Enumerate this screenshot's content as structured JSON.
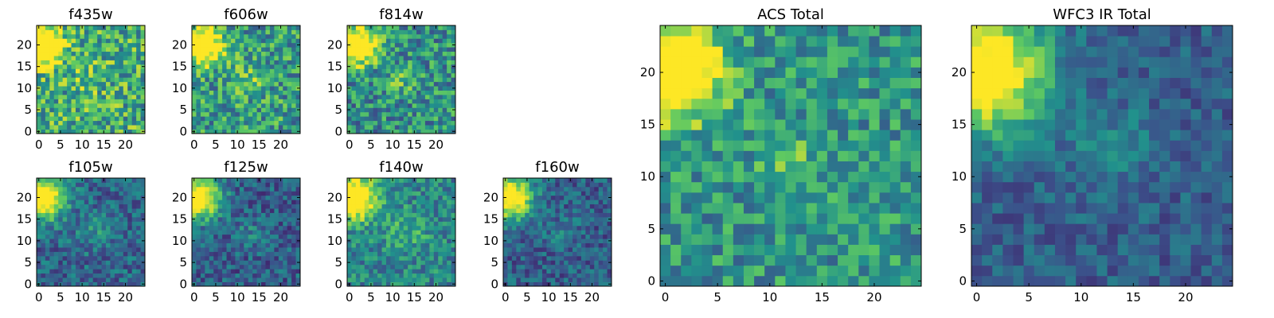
{
  "figure": {
    "colormap": "viridis",
    "colormap_stops": [
      "#440154",
      "#3b528b",
      "#21918c",
      "#5ec962",
      "#fde725"
    ]
  },
  "chart_data": [
    {
      "type": "heatmap",
      "title": "f435w",
      "grid_size": [
        25,
        25
      ],
      "xlim": [
        -0.5,
        24.5
      ],
      "ylim": [
        -0.5,
        24.5
      ],
      "xticks": [
        0,
        5,
        10,
        15,
        20
      ],
      "yticks": [
        0,
        5,
        10,
        15,
        20
      ],
      "bright_spot": [
        1,
        20
      ],
      "bright_spot_radius": 3,
      "mean_level": 0.62,
      "noise": 0.3,
      "features": [
        {
          "x": 12,
          "y": 12,
          "sigma": 2.5,
          "amp": 0.15
        }
      ]
    },
    {
      "type": "heatmap",
      "title": "f606w",
      "grid_size": [
        25,
        25
      ],
      "xlim": [
        -0.5,
        24.5
      ],
      "ylim": [
        -0.5,
        24.5
      ],
      "xticks": [
        0,
        5,
        10,
        15,
        20
      ],
      "yticks": [
        0,
        5,
        10,
        15,
        20
      ],
      "bright_spot": [
        2,
        20
      ],
      "bright_spot_radius": 3,
      "mean_level": 0.55,
      "noise": 0.28,
      "features": [
        {
          "x": 12,
          "y": 12,
          "sigma": 2.5,
          "amp": 0.2
        }
      ]
    },
    {
      "type": "heatmap",
      "title": "f814w",
      "grid_size": [
        25,
        25
      ],
      "xlim": [
        -0.5,
        24.5
      ],
      "ylim": [
        -0.5,
        24.5
      ],
      "xticks": [
        0,
        5,
        10,
        15,
        20
      ],
      "yticks": [
        0,
        5,
        10,
        15,
        20
      ],
      "bright_spot": [
        2,
        20
      ],
      "bright_spot_radius": 3,
      "mean_level": 0.5,
      "noise": 0.27,
      "features": [
        {
          "x": 12,
          "y": 12,
          "sigma": 2.5,
          "amp": 0.2
        }
      ]
    },
    {
      "type": "heatmap",
      "title": "f105w",
      "grid_size": [
        25,
        25
      ],
      "xlim": [
        -0.5,
        24.5
      ],
      "ylim": [
        -0.5,
        24.5
      ],
      "xticks": [
        0,
        5,
        10,
        15,
        20
      ],
      "yticks": [
        0,
        5,
        10,
        15,
        20
      ],
      "bright_spot": [
        1,
        20
      ],
      "bright_spot_radius": 3.5,
      "mean_level": 0.33,
      "noise": 0.18,
      "features": [
        {
          "x": 13,
          "y": 12,
          "sigma": 3,
          "amp": 0.15
        }
      ]
    },
    {
      "type": "heatmap",
      "title": "f125w",
      "grid_size": [
        25,
        25
      ],
      "xlim": [
        -0.5,
        24.5
      ],
      "ylim": [
        -0.5,
        24.5
      ],
      "xticks": [
        0,
        5,
        10,
        15,
        20
      ],
      "yticks": [
        0,
        5,
        10,
        15,
        20
      ],
      "bright_spot": [
        1,
        20
      ],
      "bright_spot_radius": 3.5,
      "mean_level": 0.3,
      "noise": 0.18,
      "features": [
        {
          "x": 13,
          "y": 12,
          "sigma": 3,
          "amp": 0.12
        }
      ]
    },
    {
      "type": "heatmap",
      "title": "f140w",
      "grid_size": [
        25,
        25
      ],
      "xlim": [
        -0.5,
        24.5
      ],
      "ylim": [
        -0.5,
        24.5
      ],
      "xticks": [
        0,
        5,
        10,
        15,
        20
      ],
      "yticks": [
        0,
        5,
        10,
        15,
        20
      ],
      "bright_spot": [
        1,
        20
      ],
      "bright_spot_radius": 3.5,
      "mean_level": 0.45,
      "noise": 0.2,
      "features": [
        {
          "x": 13,
          "y": 12,
          "sigma": 3.5,
          "amp": 0.2
        }
      ]
    },
    {
      "type": "heatmap",
      "title": "f160w",
      "grid_size": [
        25,
        25
      ],
      "xlim": [
        -0.5,
        24.5
      ],
      "ylim": [
        -0.5,
        24.5
      ],
      "xticks": [
        0,
        5,
        10,
        15,
        20
      ],
      "yticks": [
        0,
        5,
        10,
        15,
        20
      ],
      "bright_spot": [
        1,
        20
      ],
      "bright_spot_radius": 3.5,
      "mean_level": 0.3,
      "noise": 0.17,
      "features": [
        {
          "x": 13,
          "y": 12,
          "sigma": 3,
          "amp": 0.1
        }
      ]
    },
    {
      "type": "heatmap",
      "title": "ACS Total",
      "grid_size": [
        25,
        25
      ],
      "xlim": [
        -0.5,
        24.5
      ],
      "ylim": [
        -0.5,
        24.5
      ],
      "xticks": [
        0,
        5,
        10,
        15,
        20
      ],
      "yticks": [
        0,
        5,
        10,
        15,
        20
      ],
      "bright_spot": [
        1,
        20
      ],
      "bright_spot_radius": 3,
      "mean_level": 0.52,
      "noise": 0.22,
      "features": [
        {
          "x": 12,
          "y": 12,
          "sigma": 2,
          "amp": 0.2
        }
      ]
    },
    {
      "type": "heatmap",
      "title": "WFC3 IR Total",
      "grid_size": [
        25,
        25
      ],
      "xlim": [
        -0.5,
        24.5
      ],
      "ylim": [
        -0.5,
        24.5
      ],
      "xticks": [
        0,
        5,
        10,
        15,
        20
      ],
      "yticks": [
        0,
        5,
        10,
        15,
        20
      ],
      "bright_spot": [
        1,
        20
      ],
      "bright_spot_radius": 4,
      "mean_level": 0.3,
      "noise": 0.13,
      "features": [
        {
          "x": 13,
          "y": 13,
          "sigma": 3,
          "amp": 0.15
        }
      ]
    }
  ]
}
